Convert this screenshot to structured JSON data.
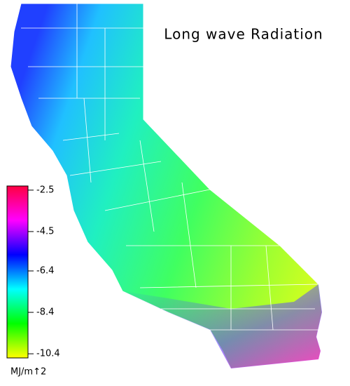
{
  "title": "Long wave Radiation",
  "colorbar": {
    "ylim": [
      -10.6,
      -2.3
    ],
    "ticks": [
      -2.5,
      -4.5,
      -6.4,
      -8.4,
      -10.4
    ],
    "colors": [
      "#ffff00",
      "#00ff00",
      "#00ffff",
      "#0000ff",
      "#ff00ff",
      "#ff0040"
    ],
    "unit": "MJ/m↑2"
  }
}
